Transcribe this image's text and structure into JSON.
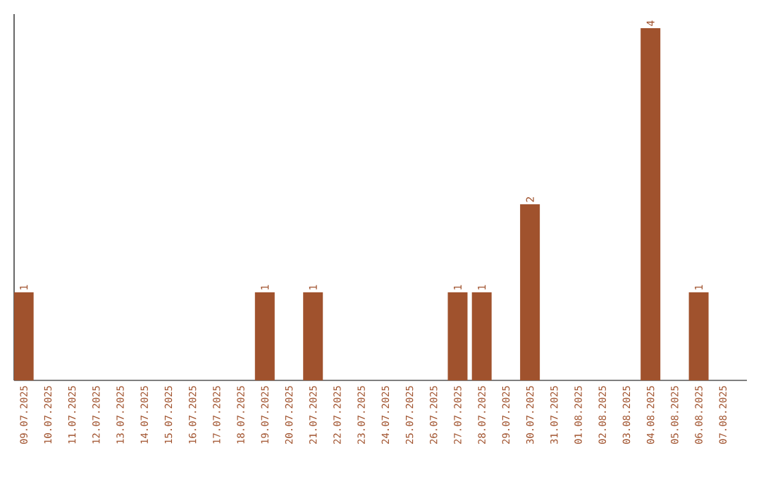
{
  "chart_data": {
    "type": "bar",
    "categories": [
      "09.07.2025",
      "10.07.2025",
      "11.07.2025",
      "12.07.2025",
      "13.07.2025",
      "14.07.2025",
      "15.07.2025",
      "16.07.2025",
      "17.07.2025",
      "18.07.2025",
      "19.07.2025",
      "20.07.2025",
      "21.07.2025",
      "22.07.2025",
      "23.07.2025",
      "24.07.2025",
      "25.07.2025",
      "26.07.2025",
      "27.07.2025",
      "28.07.2025",
      "29.07.2025",
      "30.07.2025",
      "31.07.2025",
      "01.08.2025",
      "02.08.2025",
      "03.08.2025",
      "04.08.2025",
      "05.08.2025",
      "06.08.2025",
      "07.08.2025"
    ],
    "values": [
      1,
      0,
      0,
      0,
      0,
      0,
      0,
      0,
      0,
      0,
      1,
      0,
      1,
      0,
      0,
      0,
      0,
      0,
      1,
      1,
      0,
      2,
      0,
      0,
      0,
      0,
      4,
      0,
      1,
      0
    ],
    "value_labels": [
      "1",
      null,
      null,
      null,
      null,
      null,
      null,
      null,
      null,
      null,
      "1",
      null,
      "1",
      null,
      null,
      null,
      null,
      null,
      "1",
      "1",
      null,
      "2",
      null,
      null,
      null,
      null,
      "4",
      null,
      "1",
      null
    ],
    "color": "#a0522d"
  }
}
